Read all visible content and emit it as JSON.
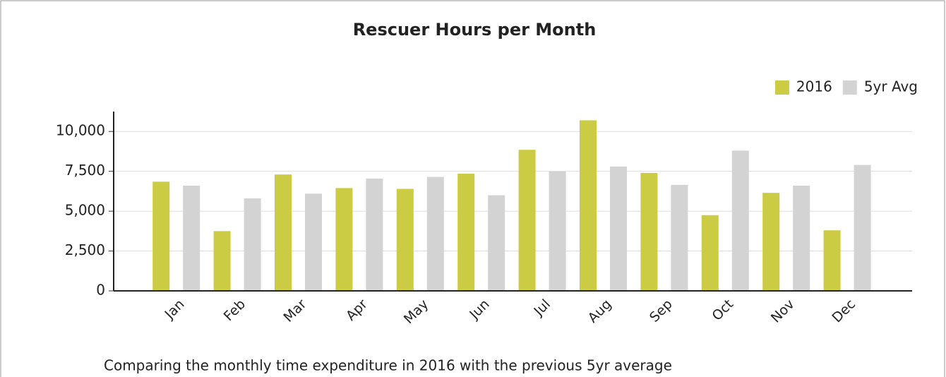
{
  "chart_data": {
    "type": "bar",
    "title": "Rescuer Hours per Month",
    "caption": "Comparing the monthly time expenditure in 2016 with the previous 5yr average",
    "categories": [
      "Jan",
      "Feb",
      "Mar",
      "Apr",
      "May",
      "Jun",
      "Jul",
      "Aug",
      "Sep",
      "Oct",
      "Nov",
      "Dec"
    ],
    "series": [
      {
        "name": "2016",
        "color": "#cccc44",
        "values": [
          6850,
          3750,
          7300,
          6450,
          6400,
          7350,
          8850,
          10700,
          7400,
          4750,
          6150,
          3800
        ]
      },
      {
        "name": "5yr Avg",
        "color": "#d3d3d3",
        "values": [
          6600,
          5800,
          6100,
          7050,
          7150,
          6000,
          7500,
          7800,
          6650,
          8800,
          6600,
          7900
        ]
      }
    ],
    "ylim": [
      0,
      11250
    ],
    "yticks": [
      0,
      {
        "value": 2500,
        "label": "2,500"
      },
      {
        "value": 5000,
        "label": "5,000"
      },
      {
        "value": 7500,
        "label": "7,500"
      },
      {
        "value": 10000,
        "label": "10,000"
      }
    ],
    "grid": true,
    "legend": "top-right"
  }
}
